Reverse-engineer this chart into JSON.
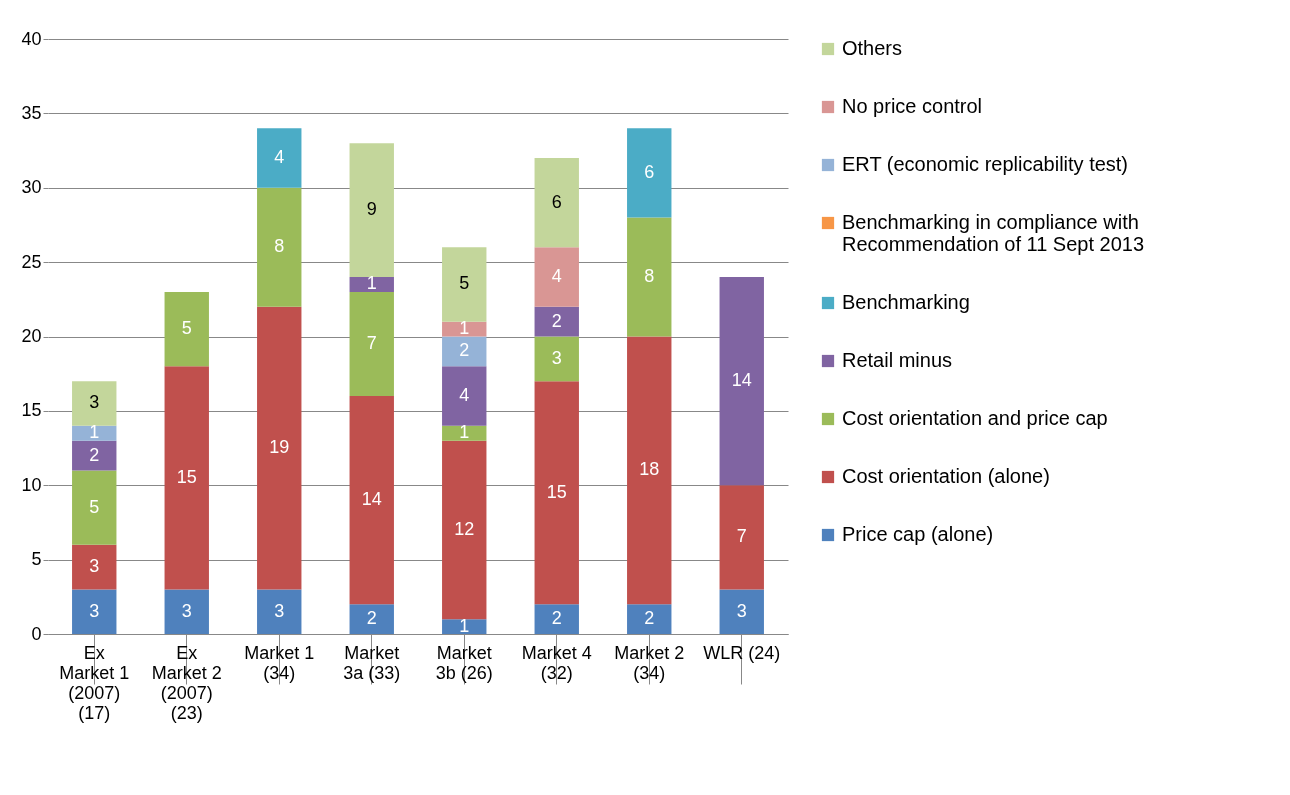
{
  "chart_data": {
    "type": "bar",
    "stacked": true,
    "data_labels": true,
    "grid": "y",
    "legend": "right",
    "categories": [
      "Ex Market 1 (2007) (17)",
      "Ex Market 2 (2007) (23)",
      "Market 1 (34)",
      "Market 3a (33)",
      "Market 3b (26)",
      "Market 4 (32)",
      "Market 2 (34)",
      "WLR (24)"
    ],
    "ylim": [
      0,
      40
    ],
    "yticks": [
      0,
      5,
      10,
      15,
      20,
      25,
      30,
      35,
      40
    ],
    "series": [
      {
        "name": "Price cap (alone)",
        "color": "#4f81bd",
        "values": [
          3,
          3,
          3,
          2,
          1,
          2,
          2,
          3
        ]
      },
      {
        "name": "Cost orientation (alone)",
        "color": "#c0504d",
        "values": [
          3,
          15,
          19,
          14,
          12,
          15,
          18,
          7
        ]
      },
      {
        "name": "Cost orientation and price cap",
        "color": "#9bbb59",
        "values": [
          5,
          5,
          8,
          7,
          1,
          3,
          8,
          null
        ]
      },
      {
        "name": "Retail minus",
        "color": "#8064a2",
        "values": [
          2,
          null,
          null,
          1,
          4,
          2,
          null,
          14
        ]
      },
      {
        "name": "Benchmarking",
        "color": "#4bacc6",
        "values": [
          null,
          null,
          4,
          null,
          null,
          null,
          6,
          null
        ]
      },
      {
        "name": "Benchmarking in compliance with Recommendation of 11 Sept 2013",
        "color": "#f79646",
        "values": [
          null,
          null,
          null,
          null,
          null,
          null,
          null,
          null
        ]
      },
      {
        "name": "ERT (economic replicability test)",
        "color": "#95b3d7",
        "values": [
          1,
          null,
          null,
          null,
          2,
          null,
          null,
          null
        ]
      },
      {
        "name": "No price control",
        "color": "#d99694",
        "values": [
          null,
          null,
          null,
          null,
          1,
          4,
          null,
          null
        ]
      },
      {
        "name": "Others",
        "color": "#c3d69b",
        "values": [
          3,
          null,
          null,
          9,
          5,
          6,
          null,
          null
        ]
      }
    ]
  }
}
